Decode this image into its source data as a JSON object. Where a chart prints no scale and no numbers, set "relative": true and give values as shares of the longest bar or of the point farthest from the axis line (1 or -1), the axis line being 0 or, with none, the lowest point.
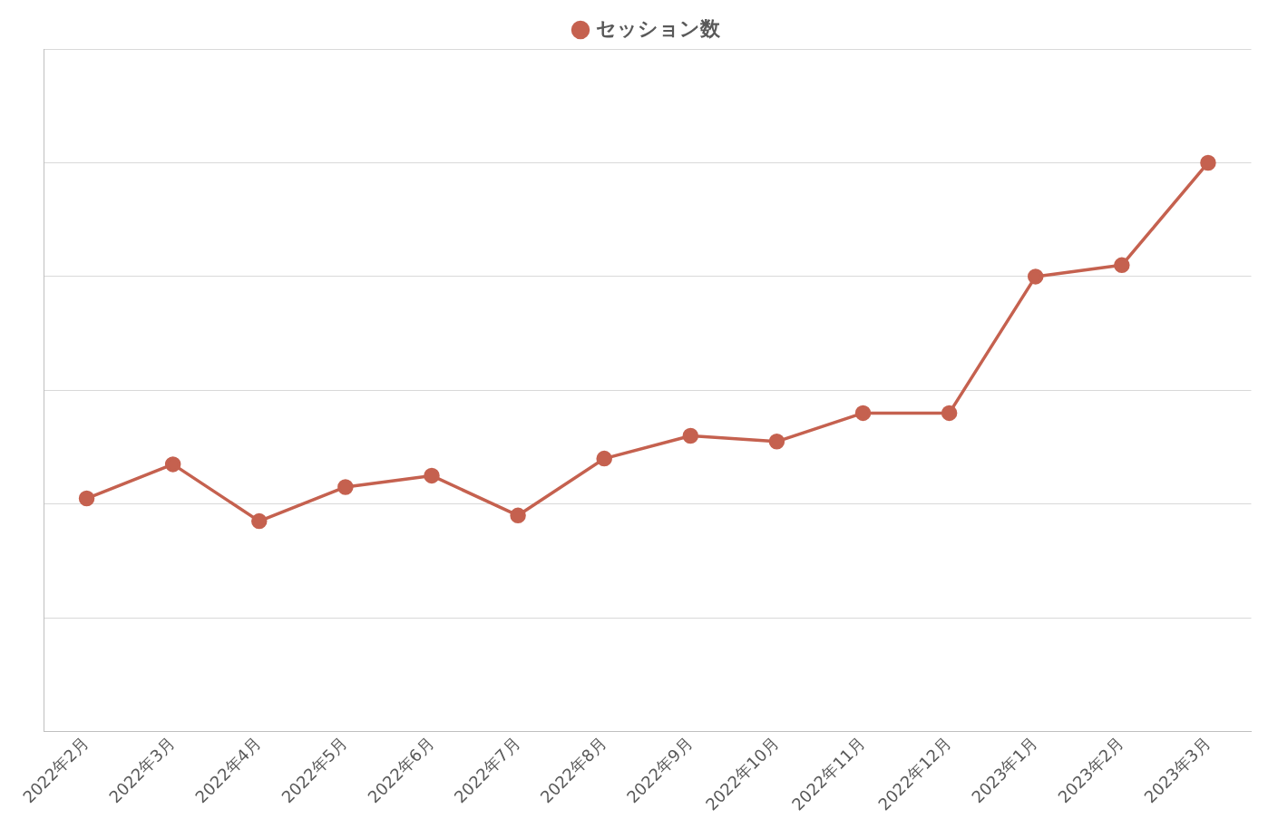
{
  "chart_data": {
    "type": "line",
    "relative": true,
    "categories": [
      "2022年2月",
      "2022年3月",
      "2022年4月",
      "2022年5月",
      "2022年6月",
      "2022年7月",
      "2022年8月",
      "2022年9月",
      "2022年10月",
      "2022年11月",
      "2022年12月",
      "2023年1月",
      "2023年2月",
      "2023年3月"
    ],
    "series": [
      {
        "name": "セッション数",
        "color": "#c5614f",
        "values": [
          0.41,
          0.47,
          0.37,
          0.43,
          0.45,
          0.38,
          0.48,
          0.52,
          0.51,
          0.56,
          0.56,
          0.8,
          0.82,
          1
        ]
      }
    ],
    "legend": "top",
    "grid": "y",
    "marker": "circle",
    "line_style": "solid"
  }
}
